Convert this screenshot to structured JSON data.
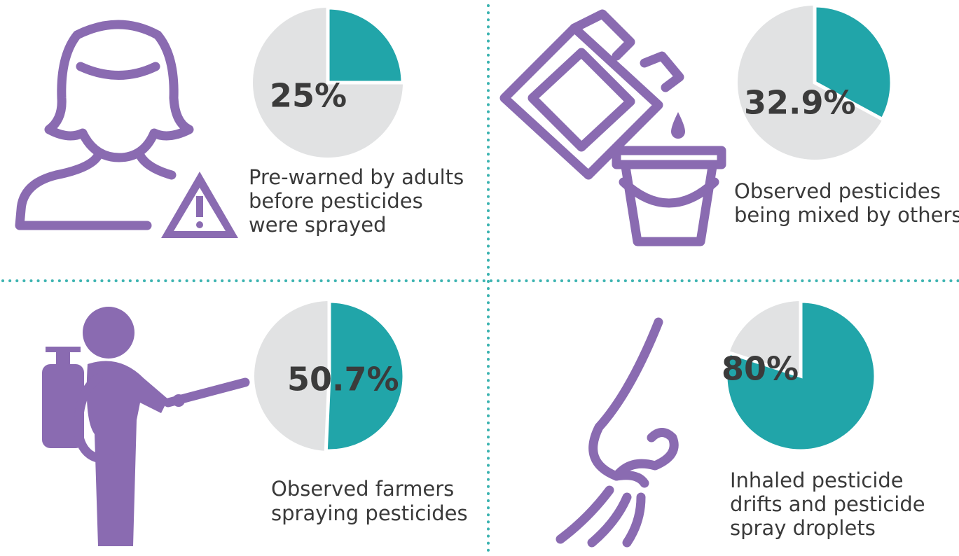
{
  "chart_data": [
    {
      "type": "pie",
      "values": [
        25
      ],
      "value_labels": [
        "25%"
      ],
      "color": "#21a5a9",
      "caption": [
        "Pre-warned by adults",
        "before pesticides",
        "were sprayed"
      ]
    },
    {
      "type": "pie",
      "values": [
        32.9
      ],
      "value_labels": [
        "32.9%"
      ],
      "color": "#21a5a9",
      "caption": [
        "Observed pesticides",
        "being mixed by others"
      ]
    },
    {
      "type": "pie",
      "values": [
        50.7
      ],
      "value_labels": [
        "50.7%"
      ],
      "color": "#21a5a9",
      "caption": [
        "Observed farmers",
        "spraying pesticides"
      ]
    },
    {
      "type": "pie",
      "values": [
        80
      ],
      "value_labels": [
        "80%"
      ],
      "color": "#21a5a9",
      "caption": [
        "Inhaled pesticide",
        "drifts and pesticide",
        "spray droplets"
      ]
    }
  ]
}
